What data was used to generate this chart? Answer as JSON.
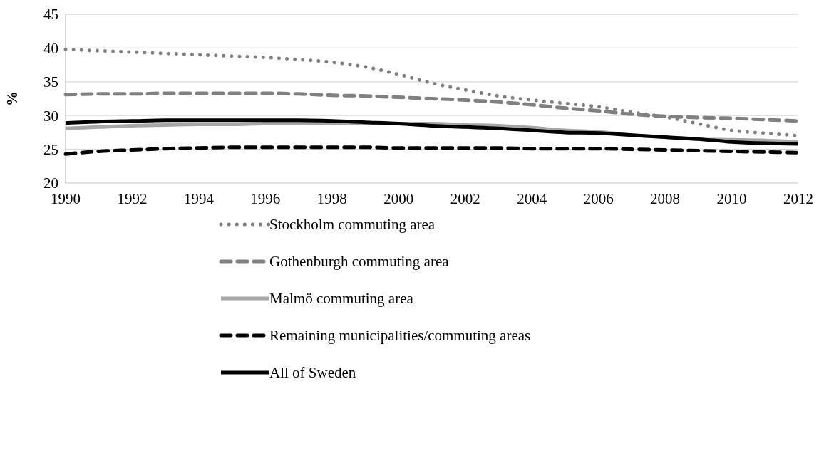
{
  "chart_data": {
    "type": "line",
    "ylabel": "%",
    "x": [
      1990,
      1991,
      1992,
      1993,
      1994,
      1995,
      1996,
      1997,
      1998,
      1999,
      2000,
      2001,
      2002,
      2003,
      2004,
      2005,
      2006,
      2007,
      2008,
      2009,
      2010,
      2011,
      2012
    ],
    "xlim": [
      1990,
      2012
    ],
    "xticks": [
      1990,
      1992,
      1994,
      1996,
      1998,
      2000,
      2002,
      2004,
      2006,
      2008,
      2010,
      2012
    ],
    "ylim": [
      20,
      45
    ],
    "yticks": [
      20,
      25,
      30,
      35,
      40,
      45
    ],
    "grid": "y",
    "legend": "bottom",
    "series": [
      {
        "name": "Stockholm commuting area",
        "color": "#808080",
        "line_style": "dotted",
        "values": [
          39.8,
          39.6,
          39.4,
          39.2,
          39.0,
          38.8,
          38.6,
          38.3,
          37.9,
          37.2,
          36.1,
          34.8,
          33.8,
          32.9,
          32.3,
          31.8,
          31.3,
          30.5,
          29.8,
          28.8,
          27.8,
          27.4,
          27.0
        ]
      },
      {
        "name": "Gothenburgh commuting area",
        "color": "#808080",
        "line_style": "dashed",
        "values": [
          33.1,
          33.2,
          33.2,
          33.3,
          33.3,
          33.3,
          33.3,
          33.2,
          33.0,
          32.9,
          32.7,
          32.5,
          32.3,
          32.0,
          31.6,
          31.1,
          30.7,
          30.2,
          29.9,
          29.7,
          29.6,
          29.4,
          29.2
        ]
      },
      {
        "name": "Malmö commuting area",
        "color": "#a6a6a6",
        "line_style": "solid",
        "values": [
          28.1,
          28.3,
          28.5,
          28.6,
          28.7,
          28.7,
          28.8,
          28.8,
          28.9,
          28.9,
          28.8,
          28.8,
          28.6,
          28.5,
          28.2,
          27.8,
          27.6,
          27.1,
          26.8,
          26.5,
          26.4,
          26.3,
          26.1
        ]
      },
      {
        "name": "Remaining municipalities/commuting areas",
        "color": "#000000",
        "line_style": "dashed",
        "values": [
          24.3,
          24.7,
          24.9,
          25.1,
          25.2,
          25.3,
          25.3,
          25.3,
          25.3,
          25.3,
          25.2,
          25.2,
          25.2,
          25.2,
          25.1,
          25.1,
          25.1,
          25.0,
          24.9,
          24.8,
          24.7,
          24.6,
          24.5
        ]
      },
      {
        "name": "All of Sweden",
        "color": "#000000",
        "line_style": "solid",
        "values": [
          28.9,
          29.1,
          29.2,
          29.3,
          29.3,
          29.3,
          29.3,
          29.3,
          29.2,
          29.0,
          28.8,
          28.5,
          28.3,
          28.1,
          27.8,
          27.5,
          27.4,
          27.1,
          26.8,
          26.5,
          26.1,
          25.9,
          25.8
        ]
      }
    ]
  }
}
